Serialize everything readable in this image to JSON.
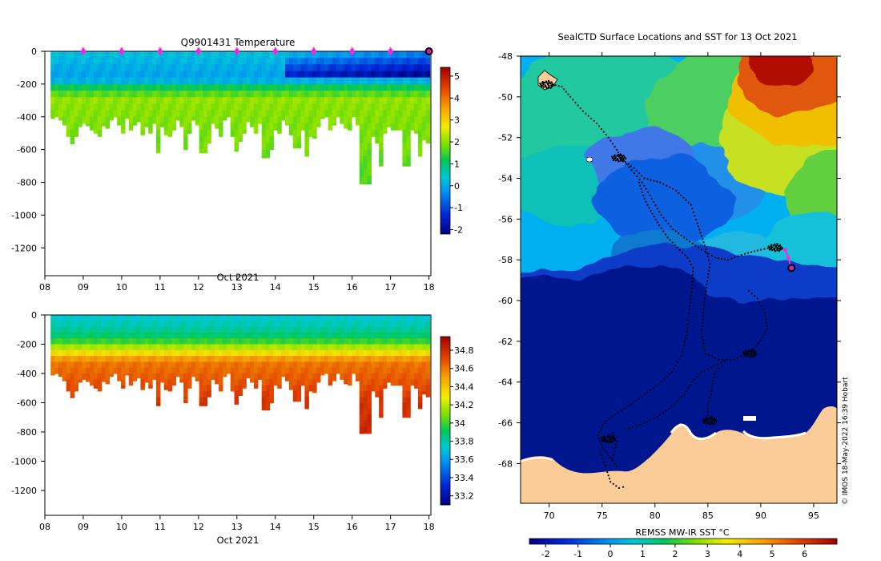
{
  "chart_data": [
    {
      "type": "heatmap",
      "title": "Q9901431  Temperature",
      "xlabel": "Oct 2021",
      "ylabel": "",
      "x_tick_labels": [
        "08",
        "09",
        "10",
        "11",
        "12",
        "13",
        "14",
        "15",
        "16",
        "17",
        "18"
      ],
      "xlim": [
        8,
        18.05
      ],
      "y_ticks": [
        0,
        -200,
        -400,
        -600,
        -800,
        -1000,
        -1200
      ],
      "ylim": [
        -1370,
        0
      ],
      "colorbar": {
        "ticks": [
          5,
          4,
          3,
          2,
          1,
          0,
          -1,
          -2
        ],
        "range": [
          -2.2,
          5.4
        ]
      },
      "profile_markers_days": [
        9,
        10,
        11,
        12,
        13,
        14,
        15,
        16,
        17
      ],
      "current_position_day": 18,
      "profile_bottom_depths_m": [
        -410,
        -400,
        -420,
        -450,
        -520,
        -565,
        -520,
        -460,
        -440,
        -455,
        -480,
        -500,
        -520,
        -455,
        -470,
        -420,
        -400,
        -450,
        -500,
        -410,
        -480,
        -450,
        -430,
        -510,
        -460,
        -500,
        -440,
        -620,
        -460,
        -510,
        -520,
        -480,
        -420,
        -460,
        -600,
        -500,
        -420,
        -450,
        -620,
        -620,
        -560,
        -440,
        -470,
        -520,
        -420,
        -400,
        -520,
        -610,
        -550,
        -500,
        -430,
        -460,
        -500,
        -440,
        -650,
        -650,
        -600,
        -480,
        -500,
        -420,
        -450,
        -510,
        -590,
        -590,
        -480,
        -640,
        -520,
        -530,
        -460,
        -410,
        -400,
        -480,
        -450,
        -400,
        -440,
        -470,
        -480,
        -400,
        -450,
        -810,
        -810,
        -810,
        -520,
        -560,
        -700,
        -500,
        -460,
        -480,
        -480,
        -480,
        -700,
        -700,
        -480,
        -500,
        -640,
        -540,
        -560
      ]
    },
    {
      "type": "heatmap",
      "title": "",
      "xlabel": "Oct 2021",
      "ylabel": "",
      "x_tick_labels": [
        "08",
        "09",
        "10",
        "11",
        "12",
        "13",
        "14",
        "15",
        "16",
        "17",
        "18"
      ],
      "xlim": [
        8,
        18.05
      ],
      "y_ticks": [
        0,
        -200,
        -400,
        -600,
        -800,
        -1000,
        -1200
      ],
      "ylim": [
        -1370,
        0
      ],
      "colorbar": {
        "ticks": [
          34.8,
          34.6,
          34.4,
          34.2,
          34,
          33.8,
          33.6,
          33.4,
          33.2
        ],
        "range": [
          33.1,
          34.95
        ]
      }
    },
    {
      "type": "map",
      "title": "SealCTD Surface Locations and SST for 13 Oct 2021",
      "xlabel": "",
      "ylabel": "",
      "x_ticks": [
        70,
        75,
        80,
        85,
        90,
        95
      ],
      "y_ticks": [
        -48,
        -50,
        -52,
        -54,
        -56,
        -58,
        -60,
        -62,
        -64,
        -66,
        -68
      ],
      "lon_range": [
        67.3,
        97.2
      ],
      "lat_range": [
        -69.95,
        -48
      ],
      "colorbar": {
        "label": "REMSS MW-IR SST °C",
        "ticks": [
          -2,
          -1,
          0,
          1,
          2,
          3,
          4,
          5,
          6
        ],
        "range": [
          -2.5,
          7
        ]
      },
      "credit": "© IMOS 18-May-2022 16:39 Hobart",
      "current_position": [
        92.9,
        -58.4
      ],
      "recent_track": [
        [
          92.3,
          -57.5
        ],
        [
          92.6,
          -57.9
        ],
        [
          92.9,
          -58.4
        ]
      ],
      "tracks": [
        [
          [
            69.5,
            -49.3
          ],
          [
            70.3,
            -49.4
          ],
          [
            71.2,
            -49.5
          ],
          [
            72.0,
            -50.0
          ],
          [
            73.2,
            -50.7
          ],
          [
            74.5,
            -51.3
          ],
          [
            75.6,
            -52.0
          ],
          [
            76.4,
            -52.6
          ],
          [
            76.8,
            -53.0
          ],
          [
            77.8,
            -53.6
          ],
          [
            78.8,
            -54.2
          ],
          [
            79.7,
            -55.0
          ],
          [
            80.6,
            -55.8
          ],
          [
            81.7,
            -56.5
          ],
          [
            83.0,
            -57.0
          ],
          [
            84.4,
            -57.5
          ],
          [
            85.7,
            -57.9
          ],
          [
            86.9,
            -58.0
          ],
          [
            88.5,
            -57.7
          ],
          [
            90.0,
            -57.5
          ],
          [
            91.0,
            -57.4
          ],
          [
            92.3,
            -57.5
          ]
        ],
        [
          [
            76.7,
            -53.0
          ],
          [
            78.0,
            -53.5
          ],
          [
            79.0,
            -54.0
          ],
          [
            80.5,
            -54.2
          ],
          [
            82.0,
            -54.6
          ],
          [
            83.4,
            -55.3
          ],
          [
            84.0,
            -56.2
          ],
          [
            84.7,
            -57.3
          ],
          [
            85.2,
            -58.2
          ],
          [
            84.9,
            -59.2
          ],
          [
            84.6,
            -60.4
          ],
          [
            84.4,
            -61.6
          ],
          [
            84.8,
            -62.6
          ],
          [
            86.0,
            -62.9
          ],
          [
            87.5,
            -62.9
          ],
          [
            88.8,
            -62.6
          ],
          [
            89.8,
            -62.1
          ],
          [
            90.6,
            -61.4
          ],
          [
            90.4,
            -60.6
          ],
          [
            89.7,
            -59.9
          ],
          [
            88.6,
            -59.4
          ]
        ],
        [
          [
            78.5,
            -54.2
          ],
          [
            79.0,
            -55.0
          ],
          [
            79.6,
            -55.6
          ],
          [
            80.4,
            -56.3
          ],
          [
            81.2,
            -56.9
          ],
          [
            82.1,
            -57.4
          ],
          [
            83.1,
            -57.9
          ],
          [
            83.6,
            -58.4
          ],
          [
            83.5,
            -59.4
          ],
          [
            83.2,
            -60.6
          ],
          [
            83.0,
            -61.7
          ],
          [
            82.5,
            -62.7
          ],
          [
            81.6,
            -63.5
          ],
          [
            80.4,
            -64.1
          ],
          [
            79.0,
            -64.6
          ],
          [
            77.7,
            -65.1
          ],
          [
            76.2,
            -65.6
          ],
          [
            75.2,
            -66.0
          ],
          [
            74.6,
            -66.6
          ],
          [
            75.0,
            -67.2
          ],
          [
            75.8,
            -67.7
          ],
          [
            76.6,
            -68.3
          ]
        ],
        [
          [
            77.2,
            -66.3
          ],
          [
            78.6,
            -66.1
          ],
          [
            80.2,
            -65.7
          ],
          [
            81.6,
            -65.2
          ],
          [
            82.8,
            -64.6
          ],
          [
            83.5,
            -64.0
          ],
          [
            84.4,
            -63.5
          ],
          [
            85.6,
            -63.2
          ],
          [
            86.9,
            -62.9
          ]
        ],
        [
          [
            85.0,
            -65.8
          ],
          [
            85.0,
            -65.3
          ],
          [
            85.3,
            -64.6
          ],
          [
            85.6,
            -63.6
          ],
          [
            86.6,
            -63.1
          ]
        ],
        [
          [
            74.8,
            -67.4
          ],
          [
            75.3,
            -68.1
          ],
          [
            75.8,
            -68.9
          ],
          [
            76.6,
            -69.2
          ],
          [
            77.4,
            -69.1
          ]
        ],
        [
          [
            76.0,
            -66.5
          ],
          [
            76.4,
            -66.9
          ],
          [
            76.2,
            -67.4
          ],
          [
            75.8,
            -67.9
          ]
        ]
      ],
      "track_clusters": [
        [
          76.6,
          -53.0
        ],
        [
          69.8,
          -49.4
        ],
        [
          91.4,
          -57.4
        ],
        [
          85.2,
          -65.9
        ],
        [
          75.6,
          -66.8
        ],
        [
          89.0,
          -62.6
        ]
      ]
    }
  ]
}
